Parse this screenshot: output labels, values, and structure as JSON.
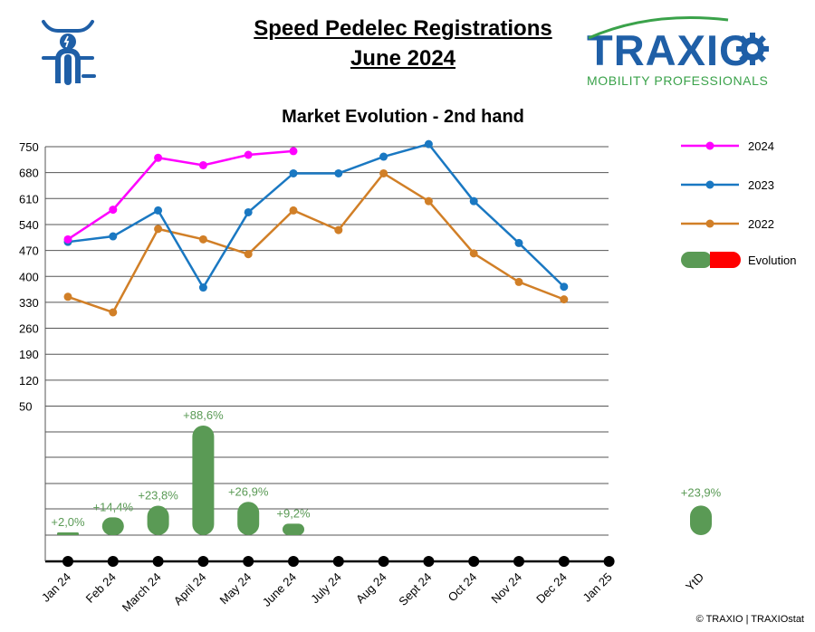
{
  "header": {
    "title_line1": "Speed Pedelec Registrations",
    "title_line2": "June 2024",
    "brand_name": "TRAXIO",
    "brand_tagline": "MOBILITY PROFESSIONALS",
    "icon": "speed-pedelec-rider-icon"
  },
  "footer": {
    "copyright": "© TRAXIO | TRAXIOstat"
  },
  "colors": {
    "2024": "#ff00ff",
    "2023": "#1a78c2",
    "2022": "#d17f27",
    "positive": "#5a9a55",
    "negative": "#ff0000",
    "brand_blue": "#1f5fa7",
    "brand_green": "#3aa24a"
  },
  "chart_data": {
    "type": "line",
    "title": "Market Evolution - 2nd hand",
    "categories": [
      "Jan 24",
      "Feb 24",
      "March 24",
      "April 24",
      "May 24",
      "June 24",
      "July 24",
      "Aug 24",
      "Sept 24",
      "Oct 24",
      "Nov 24",
      "Dec 24",
      "Jan 25"
    ],
    "y_ticks": [
      "750",
      "680",
      "610",
      "540",
      "470",
      "400",
      "330",
      "260",
      "190",
      "120",
      "50"
    ],
    "ylim": [
      50,
      750
    ],
    "grid": true,
    "legend_position": "right",
    "series": [
      {
        "name": "2024",
        "values": [
          500,
          580,
          720,
          700,
          728,
          738,
          null,
          null,
          null,
          null,
          null,
          null,
          null
        ]
      },
      {
        "name": "2023",
        "values": [
          493,
          508,
          578,
          370,
          573,
          678,
          678,
          723,
          757,
          603,
          490,
          372,
          null
        ]
      },
      {
        "name": "2022",
        "values": [
          345,
          303,
          528,
          500,
          460,
          578,
          525,
          678,
          603,
          462,
          385,
          338,
          null
        ]
      }
    ],
    "evolution": {
      "name": "Evolution",
      "values": [
        2.0,
        14.4,
        23.8,
        88.6,
        26.9,
        9.2
      ],
      "labels": [
        "+2,0%",
        "+14,4%",
        "+23,8%",
        "+88,6%",
        "+26,9%",
        "+9,2%"
      ]
    },
    "ytd": {
      "category": "YtD",
      "value": 23.9,
      "label": "+23,9%"
    }
  }
}
